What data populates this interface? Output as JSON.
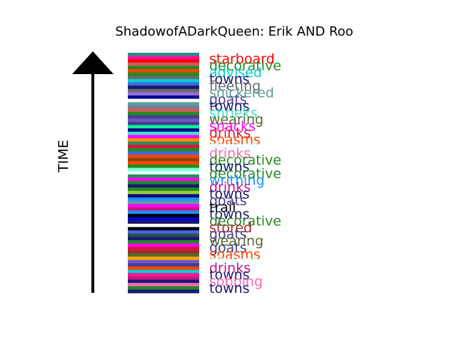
{
  "chart_data": {
    "type": "stacked-timeline",
    "title": "ShadowofADarkQueen: Erik AND Roo",
    "ylabel": "TIME",
    "grid": false,
    "legend": "none",
    "stripe_colors": [
      "#2e8b8b",
      "#ff1493",
      "#ff0000",
      "#cd5c5c",
      "#228b22",
      "#ff4500",
      "#228b22",
      "#696969",
      "#00ced1",
      "#4169e1",
      "#191970",
      "#696969",
      "#9370db",
      "#00008b",
      "#ffffff",
      "#5f9ea0",
      "#708090",
      "#cd5c5c",
      "#228b22",
      "#483d8b",
      "#6a5acd",
      "#483d8b",
      "#00fa9a",
      "#000080",
      "#40e0d0",
      "#ff00ff",
      "#ff8c00",
      "#2e8b57",
      "#dc143c",
      "#228b22",
      "#4169e1",
      "#ff4500",
      "#8b4513",
      "#ff4500",
      "#228b22",
      "#7fffd4",
      "#e0ffff",
      "#2e8b57",
      "#ff00ff",
      "#228b22",
      "#191970",
      "#228b22",
      "#9acd32",
      "#000080",
      "#1e90ff",
      "#5f9ea0",
      "#ff00ff",
      "#c71585",
      "#1e90ff",
      "#000000",
      "#0000cd",
      "#191970",
      "#ffffff",
      "#000000",
      "#4169e1",
      "#2f4f4f",
      "#191970",
      "#228b22",
      "#ff00ff",
      "#dc143c",
      "#a52a2a",
      "#556b2f",
      "#ffa500",
      "#6a5acd",
      "#483d8b",
      "#ff4500",
      "#00ced1",
      "#ff1493",
      "#c71585",
      "#191970",
      "#ff69b4",
      "#228b22",
      "#191970"
    ],
    "labels": [
      {
        "text": "starboard",
        "color": "#ff0000"
      },
      {
        "text": "decorative",
        "color": "#228b22"
      },
      {
        "text": "advised",
        "color": "#00ced1"
      },
      {
        "text": "towns",
        "color": "#191970"
      },
      {
        "text": "fleeting",
        "color": "#696969"
      },
      {
        "text": "snickered",
        "color": "#5f9ea0"
      },
      {
        "text": "goats",
        "color": "#483d8b"
      },
      {
        "text": "towns",
        "color": "#191970"
      },
      {
        "text": "shrieks",
        "color": "#40e0d0"
      },
      {
        "text": "wearing",
        "color": "#556b2f"
      },
      {
        "text": "snacks",
        "color": "#ff00ff"
      },
      {
        "text": "drinks",
        "color": "#dc143c"
      },
      {
        "text": "spasms",
        "color": "#ff4500"
      },
      {
        "text": "shrieds",
        "color": "#e0ffff"
      },
      {
        "text": "drinks",
        "color": "#ff69b4"
      },
      {
        "text": "decorative",
        "color": "#228b22"
      },
      {
        "text": "towns",
        "color": "#191970"
      },
      {
        "text": "decorative",
        "color": "#228b22"
      },
      {
        "text": "writhing",
        "color": "#1e90ff"
      },
      {
        "text": "drinks",
        "color": "#c71585"
      },
      {
        "text": "towns",
        "color": "#191970"
      },
      {
        "text": "goats",
        "color": "#483d8b"
      },
      {
        "text": "trail",
        "color": "#000000"
      },
      {
        "text": "towns",
        "color": "#191970"
      },
      {
        "text": "decorative",
        "color": "#228b22"
      },
      {
        "text": "stored",
        "color": "#a52a2a"
      },
      {
        "text": "goats",
        "color": "#483d8b"
      },
      {
        "text": "wearing",
        "color": "#556b2f"
      },
      {
        "text": "goats",
        "color": "#483d8b"
      },
      {
        "text": "spasms",
        "color": "#ff4500"
      },
      {
        "text": "shrieds",
        "color": "#e0ffff"
      },
      {
        "text": "drinks",
        "color": "#c71585"
      },
      {
        "text": "towns",
        "color": "#191970"
      },
      {
        "text": "sobbing",
        "color": "#ff69b4"
      },
      {
        "text": "towns",
        "color": "#191970"
      }
    ]
  }
}
